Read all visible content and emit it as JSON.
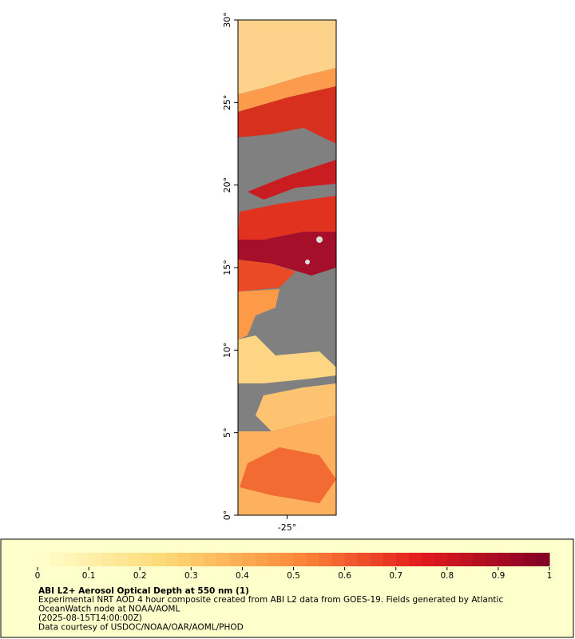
{
  "map": {
    "ylim": [
      0,
      30
    ],
    "yticks": [
      {
        "value": 0,
        "label": "0°"
      },
      {
        "value": 5,
        "label": "5°"
      },
      {
        "value": 10,
        "label": "10°"
      },
      {
        "value": 15,
        "label": "15°"
      },
      {
        "value": 20,
        "label": "20°"
      },
      {
        "value": 25,
        "label": "25°"
      },
      {
        "value": 30,
        "label": "30°"
      }
    ],
    "xlim": [
      -28,
      -22
    ],
    "xticks": [
      {
        "value": -25,
        "label": "-25°"
      }
    ]
  },
  "legend": {
    "colorbar": {
      "lim": [
        0,
        1
      ],
      "ticks": [
        0,
        0.1,
        0.2,
        0.3,
        0.4,
        0.5,
        0.6,
        0.7,
        0.8,
        0.9,
        1
      ]
    },
    "title": "ABI L2+ Aerosol Optical Depth at 550 nm (1)",
    "lines": [
      "Experimental NRT AOD 4 hour composite created from ABI L2 data from GOES-19. Fields generated by Atlantic",
      "OceanWatch node at NOAA/AOML",
      "(2025-08-15T14:00:00Z)",
      "Data courtesy of USDOC/NOAA/OAR/AOML/PHOD"
    ]
  }
}
